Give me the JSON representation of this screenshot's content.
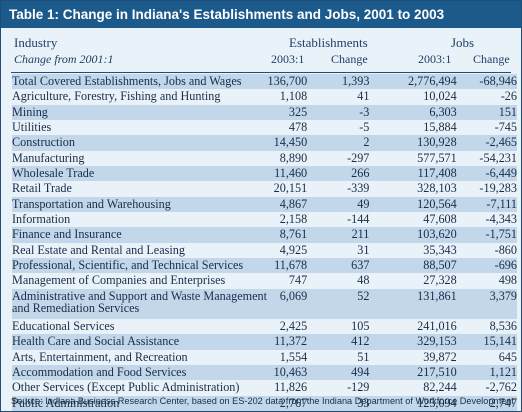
{
  "title": "Table 1: Change in Indiana's Establishments and Jobs, 2001 to 2003",
  "headers": {
    "industry": "Industry",
    "industry_sub": "Change from 2001:1",
    "establishments": "Establishments",
    "jobs": "Jobs",
    "est_level": "2003:1",
    "est_change": "Change",
    "jobs_level": "2003:1",
    "jobs_change": "Change"
  },
  "rows": [
    {
      "industry": "Total Covered Establishments, Jobs and Wages",
      "est": "136,700",
      "est_chg": "1,393",
      "jobs": "2,776,494",
      "jobs_chg": "-68,946"
    },
    {
      "industry": "Agriculture, Forestry, Fishing and Hunting",
      "est": "1,108",
      "est_chg": "41",
      "jobs": "10,024",
      "jobs_chg": "-26"
    },
    {
      "industry": "Mining",
      "est": "325",
      "est_chg": "-3",
      "jobs": "6,303",
      "jobs_chg": "151"
    },
    {
      "industry": "Utilities",
      "est": "478",
      "est_chg": "-5",
      "jobs": "15,884",
      "jobs_chg": "-745"
    },
    {
      "industry": "Construction",
      "est": "14,450",
      "est_chg": "2",
      "jobs": "130,928",
      "jobs_chg": "-2,465"
    },
    {
      "industry": "Manufacturing",
      "est": "8,890",
      "est_chg": "-297",
      "jobs": "577,571",
      "jobs_chg": "-54,231"
    },
    {
      "industry": "Wholesale Trade",
      "est": "11,460",
      "est_chg": "266",
      "jobs": "117,408",
      "jobs_chg": "-6,449"
    },
    {
      "industry": "Retail Trade",
      "est": "20,151",
      "est_chg": "-339",
      "jobs": "328,103",
      "jobs_chg": "-19,283"
    },
    {
      "industry": "Transportation and Warehousing",
      "est": "4,867",
      "est_chg": "49",
      "jobs": "120,564",
      "jobs_chg": "-7,111"
    },
    {
      "industry": "Information",
      "est": "2,158",
      "est_chg": "-144",
      "jobs": "47,608",
      "jobs_chg": "-4,343"
    },
    {
      "industry": "Finance and Insurance",
      "est": "8,761",
      "est_chg": "211",
      "jobs": "103,620",
      "jobs_chg": "-1,751"
    },
    {
      "industry": "Real Estate and Rental and Leasing",
      "est": "4,925",
      "est_chg": "31",
      "jobs": "35,343",
      "jobs_chg": "-860"
    },
    {
      "industry": "Professional, Scientific, and Technical Services",
      "est": "11,678",
      "est_chg": "637",
      "jobs": "88,507",
      "jobs_chg": "-696"
    },
    {
      "industry": "Management of Companies and Enterprises",
      "est": "747",
      "est_chg": "48",
      "jobs": "27,328",
      "jobs_chg": "498"
    },
    {
      "industry": "Administrative and Support and Waste Management and Remediation Services",
      "est": "6,069",
      "est_chg": "52",
      "jobs": "131,861",
      "jobs_chg": "3,379"
    },
    {
      "industry": "Educational Services",
      "est": "2,425",
      "est_chg": "105",
      "jobs": "241,016",
      "jobs_chg": "8,536"
    },
    {
      "industry": "Health Care and Social Assistance",
      "est": "11,372",
      "est_chg": "412",
      "jobs": "329,153",
      "jobs_chg": "15,141"
    },
    {
      "industry": "Arts, Entertainment, and Recreation",
      "est": "1,554",
      "est_chg": "51",
      "jobs": "39,872",
      "jobs_chg": "645"
    },
    {
      "industry": "Accommodation and Food Services",
      "est": "10,463",
      "est_chg": "494",
      "jobs": "217,510",
      "jobs_chg": "1,121"
    },
    {
      "industry": "Other Services (Except Public Administration)",
      "est": "11,826",
      "est_chg": "-129",
      "jobs": "82,244",
      "jobs_chg": "-2,762"
    },
    {
      "industry": "Public Administration",
      "est": "2,767",
      "est_chg": "33",
      "jobs": "125,094",
      "jobs_chg": "2,747"
    }
  ],
  "source": "Source: Indiana Business Research Center, based on ES-202 data from the Indiana Department of Workforce Development",
  "colors": {
    "title_bg": "#1d5a8c",
    "panel_bg": "#eaf2f9",
    "shaded_row": "#c3d7ea",
    "text": "#1a2d48"
  }
}
